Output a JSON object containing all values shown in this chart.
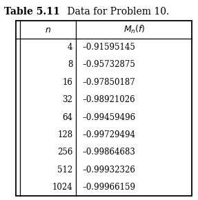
{
  "title_bold": "Table 5.11",
  "title_normal": "    Data for Problem 10.",
  "col1_header": "n",
  "col2_header": "$M_n(f)$",
  "rows": [
    [
      "4",
      "–0.91595145"
    ],
    [
      "8",
      "–0.95732875"
    ],
    [
      "16",
      "–0.97850187"
    ],
    [
      "32",
      "–0.98921026"
    ],
    [
      "64",
      "–0.99459496"
    ],
    [
      "128",
      "–0.99729494"
    ],
    [
      "256",
      "–0.99864683"
    ],
    [
      "512",
      "–0.99932326"
    ],
    [
      "1024",
      "–0.99966159"
    ]
  ],
  "bg_color": "#ffffff",
  "text_color": "#000000",
  "font_size": 8.5,
  "header_font_size": 9.0,
  "title_font_size": 10.0,
  "fig_width": 2.87,
  "fig_height": 2.9,
  "dpi": 100
}
